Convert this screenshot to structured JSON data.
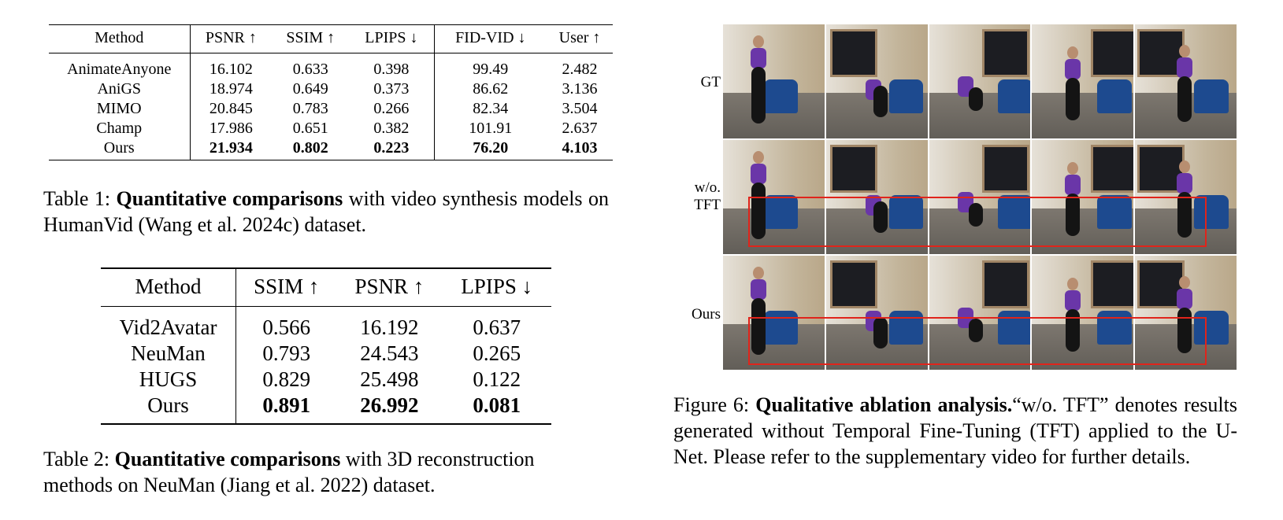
{
  "table1": {
    "headers": [
      "Method",
      "PSNR ↑",
      "SSIM ↑",
      "LPIPS ↓",
      "FID-VID ↓",
      "User ↑"
    ],
    "rows": [
      [
        "AnimateAnyone",
        "16.102",
        "0.633",
        "0.398",
        "99.49",
        "2.482"
      ],
      [
        "AniGS",
        "18.974",
        "0.649",
        "0.373",
        "86.62",
        "3.136"
      ],
      [
        "MIMO",
        "20.845",
        "0.783",
        "0.266",
        "82.34",
        "3.504"
      ],
      [
        "Champ",
        "17.986",
        "0.651",
        "0.382",
        "101.91",
        "2.637"
      ],
      [
        "Ours",
        "21.934",
        "0.802",
        "0.223",
        "76.20",
        "4.103"
      ]
    ],
    "caption_prefix": "Table 1: ",
    "caption_bold": "Quantitative comparisons",
    "caption_rest": " with video synthesis models on HumanVid (Wang et al. 2024c) dataset."
  },
  "table2": {
    "headers": [
      "Method",
      "SSIM ↑",
      "PSNR ↑",
      "LPIPS ↓"
    ],
    "rows": [
      [
        "Vid2Avatar",
        "0.566",
        "16.192",
        "0.637"
      ],
      [
        "NeuMan",
        "0.793",
        "24.543",
        "0.265"
      ],
      [
        "HUGS",
        "0.829",
        "25.498",
        "0.122"
      ],
      [
        "Ours",
        "0.891",
        "26.992",
        "0.081"
      ]
    ],
    "caption_prefix": "Table 2: ",
    "caption_bold": "Quantitative comparisons",
    "caption_rest": " with 3D reconstruction methods on NeuMan (Jiang et al. 2022) dataset."
  },
  "figure6": {
    "row_labels": [
      "GT",
      "w/o. TFT",
      "Ours"
    ],
    "highlight_color": "#e0241b",
    "caption_prefix": "Figure 6: ",
    "caption_bold": "Qualitative ablation analysis.",
    "caption_rest": "“w/o. TFT” denotes results generated without Temporal Fine-Tuning (TFT) applied to the U-Net. Please refer to the supplementary video for further details."
  }
}
